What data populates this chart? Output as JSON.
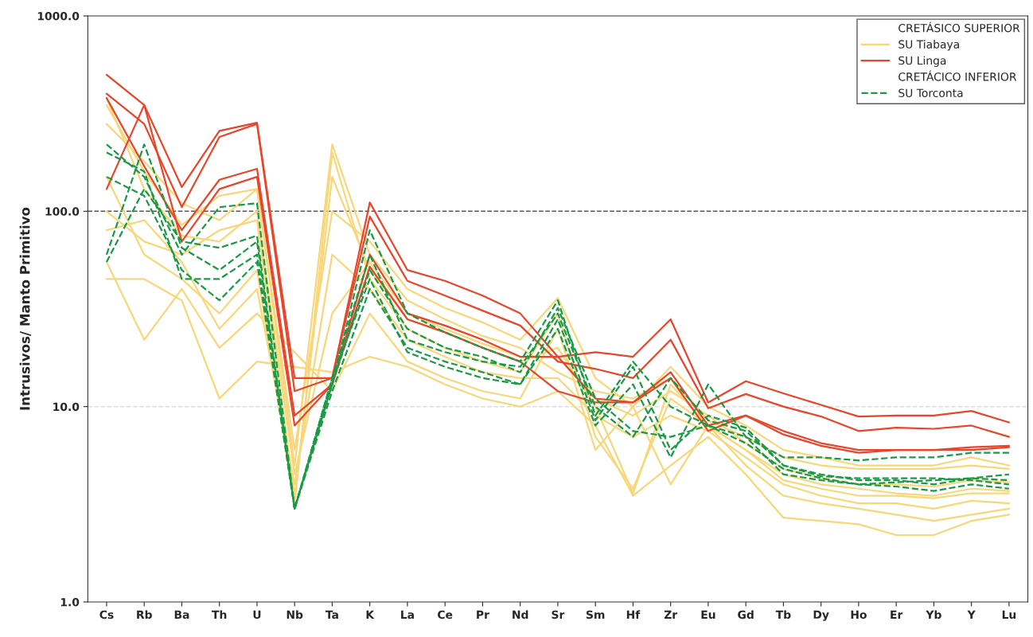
{
  "chart_data": {
    "type": "line",
    "ylabel": "Intrusivos/ Manto Primitivo",
    "categories": [
      "Cs",
      "Rb",
      "Ba",
      "Th",
      "U",
      "Nb",
      "Ta",
      "K",
      "La",
      "Ce",
      "Pr",
      "Nd",
      "Sr",
      "Sm",
      "Hf",
      "Zr",
      "Eu",
      "Gd",
      "Tb",
      "Dy",
      "Ho",
      "Er",
      "Yb",
      "Y",
      "Lu"
    ],
    "log": true,
    "ylim": [
      1,
      1000
    ],
    "yticks": [
      {
        "value": 1,
        "label": "1.0"
      },
      {
        "value": 10,
        "label": "10.0"
      },
      {
        "value": 100,
        "label": "100.0"
      },
      {
        "value": 1000,
        "label": "1000.0"
      }
    ],
    "grid": false,
    "legend": "top right",
    "marker": "none",
    "annotations": [
      "CRETÁSICO SUPERIOR",
      "CRETÁCICO INFERIOR"
    ],
    "ref_lines": [
      {
        "axis": "y",
        "value": 100,
        "color": "#555555",
        "line_style": "dashed"
      },
      {
        "axis": "y",
        "value": 10,
        "color": "#dddddd",
        "line_style": "dashed"
      }
    ],
    "series": [
      {
        "name": "SU Tiabaya",
        "color": "#f8d77a",
        "line_style": "solid",
        "values": [
          350,
          160,
          85,
          120,
          130,
          5,
          220,
          60,
          35,
          28,
          23,
          20,
          15,
          12,
          11,
          14,
          8.5,
          7,
          5.5,
          5,
          4.8,
          4.8,
          4.8,
          5,
          4.8
        ]
      },
      {
        "color": "#f8d77a",
        "line_style": "solid",
        "values": [
          100,
          70,
          60,
          80,
          90,
          3.5,
          150,
          50,
          28,
          24,
          20,
          17,
          20,
          10,
          3.6,
          13,
          8,
          6,
          4.2,
          3.8,
          3.5,
          3.5,
          3.4,
          3.6,
          3.6
        ]
      },
      {
        "color": "#f8d77a",
        "line_style": "solid",
        "values": [
          45,
          45,
          35,
          11,
          17,
          null,
          15,
          18,
          16,
          13,
          11,
          10,
          12,
          8,
          3.5,
          5,
          7,
          4.5,
          2.7,
          2.6,
          2.5,
          2.2,
          2.2,
          2.6,
          2.8
        ]
      },
      {
        "color": "#f8d77a",
        "line_style": "solid",
        "values": [
          55,
          22,
          40,
          20,
          30,
          null,
          12,
          30,
          17,
          14,
          12,
          11,
          25,
          6,
          10,
          4,
          8,
          5,
          3.5,
          3.2,
          3,
          2.8,
          2.6,
          2.8,
          3
        ]
      },
      {
        "color": "#f8d77a",
        "line_style": "solid",
        "values": [
          280,
          180,
          110,
          90,
          130,
          6,
          100,
          70,
          40,
          32,
          27,
          22,
          36,
          14,
          10,
          16,
          10,
          8,
          6,
          5.5,
          5,
          5,
          5,
          5.5,
          5
        ]
      },
      {
        "color": "#f8d77a",
        "line_style": "solid",
        "values": [
          80,
          90,
          55,
          25,
          40,
          4,
          60,
          40,
          22,
          18,
          15,
          14,
          14,
          9,
          7,
          9,
          7.5,
          5.5,
          4,
          3.5,
          3.2,
          3.2,
          3,
          3.3,
          3.2
        ]
      },
      {
        "color": "#f8d77a",
        "line_style": "solid",
        "values": [
          380,
          130,
          75,
          70,
          100,
          4.5,
          30,
          55,
          30,
          25,
          21,
          18,
          18,
          11,
          9,
          12,
          9,
          6.5,
          4.8,
          4.3,
          4,
          4,
          3.9,
          4.2,
          4.1
        ]
      },
      {
        "color": "#f8d77a",
        "line_style": "solid",
        "values": [
          150,
          60,
          45,
          30,
          50,
          3.2,
          200,
          45,
          25,
          20,
          17,
          15,
          30,
          7,
          3.8,
          11,
          8,
          6,
          4.5,
          4,
          3.8,
          3.6,
          3.5,
          3.8,
          3.7
        ]
      },
      {
        "name": "SU Linga",
        "color": "#e8452a",
        "line_style": "solid",
        "values": [
          500,
          350,
          133,
          258,
          284,
          14,
          14,
          111,
          50,
          44,
          37,
          30,
          18,
          19,
          18,
          28,
          10.5,
          13.5,
          11.7,
          10.2,
          8.9,
          9,
          9,
          9.5,
          8.3
        ]
      },
      {
        "color": "#e8452a",
        "line_style": "solid",
        "values": [
          400,
          280,
          105,
          240,
          280,
          12,
          14,
          94,
          44,
          37,
          31,
          26,
          17,
          15.6,
          14,
          22,
          9.8,
          11.6,
          10,
          8.9,
          7.5,
          7.8,
          7.7,
          8,
          7
        ]
      },
      {
        "color": "#e8452a",
        "line_style": "solid",
        "values": [
          380,
          170,
          80,
          145,
          165,
          9,
          13,
          60,
          30,
          26,
          22,
          18,
          18,
          11,
          10.5,
          15,
          8,
          9,
          7.5,
          6.5,
          6,
          6,
          6,
          6.2,
          6.3
        ]
      },
      {
        "color": "#e8452a",
        "line_style": "solid",
        "values": [
          130,
          350,
          70,
          130,
          150,
          8,
          13,
          52,
          28,
          24,
          20,
          17,
          12,
          10.5,
          10.5,
          14,
          7.5,
          9,
          7.2,
          6.3,
          5.8,
          6,
          6,
          6,
          6.2
        ]
      },
      {
        "name": "SU Torconta",
        "color": "#1a9a45",
        "line_style": "dashed",
        "values": [
          220,
          150,
          60,
          105,
          110,
          3,
          13,
          80,
          30,
          24,
          20,
          17,
          35,
          9,
          17,
          10,
          8,
          7,
          5.5,
          5.5,
          5.3,
          5.5,
          5.5,
          5.8,
          5.8
        ]
      },
      {
        "color": "#1a9a45",
        "line_style": "dashed",
        "values": [
          60,
          220,
          65,
          50,
          70,
          3,
          14,
          60,
          22,
          19,
          17,
          16,
          30,
          10,
          7,
          14,
          8.5,
          7.5,
          5,
          4.5,
          4.2,
          4.2,
          4,
          4.3,
          4.5
        ]
      },
      {
        "color": "#1a9a45",
        "line_style": "dashed",
        "values": [
          150,
          120,
          50,
          35,
          55,
          3,
          14,
          45,
          19,
          16,
          14,
          13,
          25,
          8,
          13,
          5.5,
          13,
          7,
          4.5,
          4.2,
          4,
          3.9,
          3.7,
          4,
          3.8
        ]
      },
      {
        "color": "#1a9a45",
        "line_style": "dashed",
        "values": [
          55,
          130,
          70,
          65,
          75,
          3,
          13,
          50,
          25,
          20,
          18,
          15,
          32,
          11,
          7.5,
          7,
          8,
          6.5,
          4.8,
          4.3,
          4,
          4.1,
          4.2,
          4.3,
          4.2
        ]
      },
      {
        "color": "#1a9a45",
        "line_style": "dashed",
        "values": [
          200,
          160,
          45,
          45,
          60,
          3,
          12,
          40,
          20,
          17,
          15,
          13,
          28,
          8.5,
          16,
          6,
          9,
          7.8,
          5,
          4.4,
          4.3,
          4.3,
          4.3,
          4.2,
          4
        ]
      }
    ]
  }
}
